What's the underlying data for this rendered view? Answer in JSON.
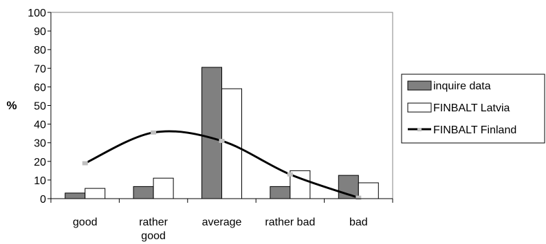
{
  "chart_data": {
    "type": "bar",
    "categories": [
      "good",
      "rather good",
      "average",
      "rather bad",
      "bad"
    ],
    "ylabel": "%",
    "ylim": [
      0,
      100
    ],
    "yticks": [
      0,
      10,
      20,
      30,
      40,
      50,
      60,
      70,
      80,
      90,
      100
    ],
    "grid": false,
    "legend_position": "right",
    "series": [
      {
        "name": "inquire data",
        "type": "bar",
        "color": "#808080",
        "values": [
          3,
          6.5,
          70.5,
          6.5,
          12.5
        ]
      },
      {
        "name": "FINBALT Latvia",
        "type": "bar",
        "color": "#ffffff",
        "values": [
          5.5,
          11,
          59,
          15,
          8.5
        ]
      },
      {
        "name": "FINBALT Finland",
        "type": "line",
        "color": "#000000",
        "marker_color": "#c0c0c0",
        "values": [
          19,
          35.5,
          31,
          13,
          0.5
        ]
      }
    ]
  }
}
